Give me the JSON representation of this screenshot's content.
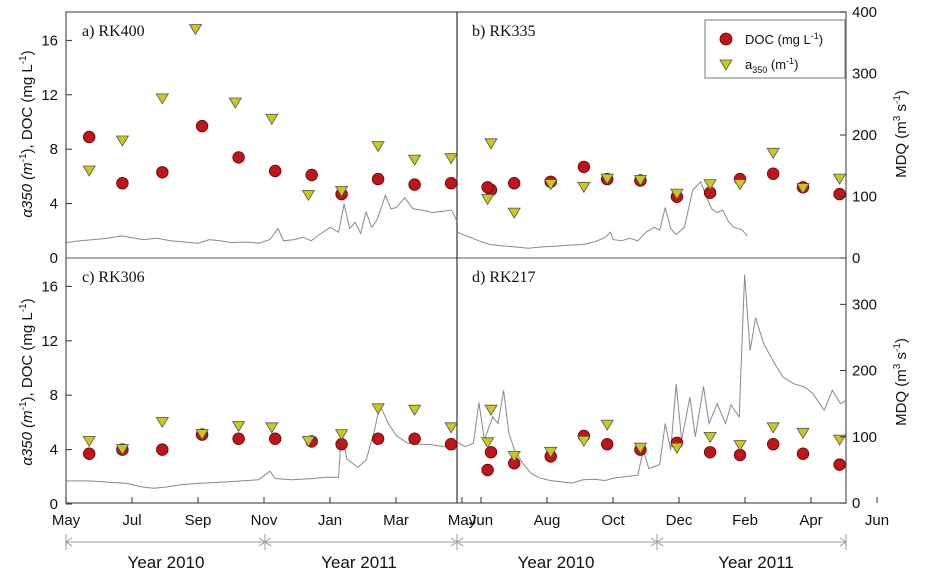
{
  "colors": {
    "doc": "#c0141a",
    "a350": "#c8c81e",
    "mdq_line": "#8a8a8a",
    "frame": "#555555"
  },
  "left_axis_title": {
    "main": "α350 (m",
    "sup1": "-1",
    "mid": "), DOC (mg L",
    "sup2": "-1",
    "end": ")"
  },
  "right_axis_title": {
    "main": "MDQ (m",
    "sup1": "3",
    "mid": " s",
    "sup2": "-1",
    "end": ")"
  },
  "legend": {
    "doc": {
      "main": "DOC (mg L",
      "sup": "-1",
      "end": ")"
    },
    "a350": {
      "main": "a",
      "sub": "350",
      "mid": " (m",
      "sup": "-1",
      "end": ")"
    },
    "position": "top-right of panel b"
  },
  "years": {
    "left": [
      "Year 2010",
      "Year 2011"
    ],
    "right": [
      "Year 2010",
      "Year 2011"
    ]
  },
  "chart_data": [
    {
      "type": "scatter",
      "panel": "a",
      "label": "a) RK400",
      "x_ticks": [
        "May",
        "Jul",
        "Sep",
        "Nov",
        "Jan",
        "Mar",
        "May"
      ],
      "ylim": [
        0,
        18
      ],
      "yticks": [
        0,
        4,
        8,
        12,
        16
      ],
      "y2lim": [
        0,
        400
      ],
      "y2ticks": [
        0,
        100,
        200,
        300,
        400
      ],
      "series": [
        {
          "name": "DOC (mg L-1)",
          "marker": "circle",
          "x": [
            1.7,
            2.7,
            3.9,
            5.1,
            6.2,
            7.3,
            8.4,
            9.3,
            10.4,
            11.5,
            12.6,
            13.8
          ],
          "y": [
            8.9,
            5.5,
            6.3,
            9.7,
            7.4,
            6.4,
            6.1,
            4.7,
            5.8,
            5.4,
            5.5,
            5.0
          ]
        },
        {
          "name": "a350 (m-1)",
          "marker": "triangle",
          "x": [
            1.7,
            2.7,
            3.9,
            4.9,
            6.1,
            7.2,
            8.3,
            9.3,
            10.4,
            11.5,
            12.6,
            13.8
          ],
          "y": [
            6.4,
            8.6,
            11.7,
            16.8,
            11.4,
            10.2,
            4.6,
            4.9,
            8.2,
            7.2,
            7.3,
            8.4
          ]
        }
      ]
    },
    {
      "type": "scatter",
      "panel": "b",
      "label": "b) RK335",
      "x_ticks": [
        "Jun",
        "Aug",
        "Oct",
        "Dec",
        "Feb",
        "Apr",
        "Jun"
      ],
      "ylim": [
        0,
        18
      ],
      "yticks": [
        0,
        4,
        8,
        12,
        16
      ],
      "y2lim": [
        0,
        400
      ],
      "y2ticks": [
        0,
        100,
        200,
        300,
        400
      ],
      "series": [
        {
          "name": "DOC (mg L-1)",
          "marker": "circle",
          "x": [
            6.2,
            7.0,
            8.1,
            9.1,
            9.8,
            10.8,
            11.9,
            12.9,
            13.8,
            14.8,
            15.7,
            16.8
          ],
          "y": [
            5.2,
            5.5,
            5.6,
            6.7,
            5.8,
            5.7,
            4.5,
            4.8,
            5.8,
            6.2,
            5.2,
            4.7
          ]
        },
        {
          "name": "a350 (m-1)",
          "marker": "triangle",
          "x": [
            6.2,
            7.0,
            8.1,
            9.1,
            9.8,
            10.8,
            11.9,
            12.9,
            13.8,
            14.8,
            15.7,
            16.8
          ],
          "y": [
            4.3,
            3.3,
            5.4,
            5.2,
            5.8,
            5.7,
            4.7,
            5.4,
            5.4,
            7.7,
            5.1,
            5.8
          ]
        }
      ]
    },
    {
      "type": "scatter",
      "panel": "c",
      "label": "c) RK306",
      "x_ticks": [
        "May",
        "Jul",
        "Sep",
        "Nov",
        "Jan",
        "Mar",
        "May"
      ],
      "ylim": [
        0,
        18
      ],
      "yticks": [
        0,
        4,
        8,
        12,
        16
      ],
      "series": [
        {
          "name": "DOC (mg L-1)",
          "marker": "circle",
          "x": [
            1.7,
            2.7,
            3.9,
            5.1,
            6.2,
            7.3,
            8.4,
            9.3,
            10.4,
            11.5,
            12.6,
            13.8
          ],
          "y": [
            3.7,
            4.0,
            4.0,
            5.1,
            4.8,
            4.8,
            4.6,
            4.4,
            4.8,
            4.8,
            4.4,
            3.8
          ]
        },
        {
          "name": "a350 (m-1)",
          "marker": "triangle",
          "x": [
            1.7,
            2.7,
            3.9,
            5.1,
            6.2,
            7.2,
            8.3,
            9.3,
            10.4,
            11.5,
            12.6,
            13.8
          ],
          "y": [
            4.6,
            4.0,
            6.0,
            5.1,
            5.7,
            5.6,
            4.6,
            5.1,
            7.0,
            6.9,
            5.6,
            6.9
          ]
        }
      ]
    },
    {
      "type": "scatter",
      "panel": "d",
      "label": "d) RK217",
      "x_ticks": [
        "Jun",
        "Aug",
        "Oct",
        "Dec",
        "Feb",
        "Apr",
        "Jun"
      ],
      "ylim": [
        0,
        18
      ],
      "yticks": [
        0,
        4,
        8,
        12,
        16
      ],
      "y2lim": [
        0,
        370
      ],
      "y2ticks": [
        0,
        100,
        200,
        300
      ],
      "series": [
        {
          "name": "DOC (mg L-1)",
          "marker": "circle",
          "x": [
            6.2,
            7.0,
            8.1,
            9.1,
            9.8,
            10.8,
            11.9,
            12.9,
            13.8,
            14.8,
            15.7,
            16.8
          ],
          "y": [
            2.5,
            3.0,
            3.5,
            5.0,
            4.4,
            4.0,
            4.5,
            3.8,
            3.6,
            4.4,
            3.7,
            2.9
          ]
        },
        {
          "name": "a350 (m-1)",
          "marker": "triangle",
          "x": [
            6.2,
            7.0,
            8.1,
            9.1,
            9.8,
            10.8,
            11.9,
            12.9,
            13.8,
            14.8,
            15.7,
            16.8
          ],
          "y": [
            4.5,
            3.5,
            3.8,
            4.6,
            5.8,
            4.1,
            4.1,
            4.9,
            4.3,
            5.6,
            5.2,
            4.7
          ]
        }
      ]
    }
  ],
  "mdq_lines": {
    "a": [
      [
        0,
        25
      ],
      [
        0.5,
        28
      ],
      [
        1.0,
        30
      ],
      [
        1.5,
        32
      ],
      [
        2.0,
        36
      ],
      [
        2.4,
        33
      ],
      [
        2.8,
        30
      ],
      [
        3.3,
        32
      ],
      [
        3.8,
        28
      ],
      [
        4.3,
        26
      ],
      [
        4.8,
        24
      ],
      [
        5.2,
        30
      ],
      [
        5.6,
        28
      ],
      [
        6.0,
        25
      ],
      [
        6.5,
        26
      ],
      [
        7.0,
        24
      ],
      [
        7.4,
        30
      ],
      [
        7.7,
        48
      ],
      [
        7.9,
        28
      ],
      [
        8.3,
        30
      ],
      [
        8.6,
        34
      ],
      [
        8.9,
        28
      ],
      [
        9.2,
        38
      ],
      [
        9.6,
        50
      ],
      [
        9.9,
        42
      ],
      [
        10.1,
        88
      ],
      [
        10.3,
        48
      ],
      [
        10.5,
        58
      ],
      [
        10.7,
        40
      ],
      [
        10.9,
        75
      ],
      [
        11.1,
        50
      ],
      [
        11.3,
        62
      ],
      [
        11.6,
        102
      ],
      [
        11.8,
        80
      ],
      [
        12.0,
        82
      ],
      [
        12.3,
        98
      ],
      [
        12.6,
        80
      ],
      [
        12.9,
        78
      ],
      [
        13.3,
        74
      ],
      [
        13.7,
        76
      ],
      [
        14.0,
        78
      ],
      [
        14.2,
        60
      ]
    ],
    "b": [
      [
        0,
        42
      ],
      [
        0.4,
        35
      ],
      [
        0.8,
        28
      ],
      [
        1.2,
        22
      ],
      [
        1.6,
        20
      ],
      [
        2.1,
        18
      ],
      [
        2.6,
        16
      ],
      [
        3.1,
        18
      ],
      [
        3.6,
        19
      ],
      [
        4.1,
        21
      ],
      [
        4.6,
        22
      ],
      [
        5.0,
        26
      ],
      [
        5.4,
        33
      ],
      [
        5.6,
        42
      ],
      [
        5.7,
        30
      ],
      [
        6.0,
        28
      ],
      [
        6.3,
        32
      ],
      [
        6.6,
        28
      ],
      [
        6.9,
        42
      ],
      [
        7.2,
        50
      ],
      [
        7.4,
        45
      ],
      [
        7.6,
        82
      ],
      [
        7.8,
        48
      ],
      [
        8.0,
        38
      ],
      [
        8.3,
        50
      ],
      [
        8.6,
        110
      ],
      [
        8.9,
        124
      ],
      [
        9.1,
        100
      ],
      [
        9.3,
        80
      ],
      [
        9.5,
        74
      ],
      [
        9.7,
        78
      ],
      [
        9.9,
        60
      ],
      [
        10.1,
        50
      ],
      [
        10.4,
        46
      ],
      [
        10.6,
        36
      ]
    ],
    "c": [
      [
        0,
        36
      ],
      [
        0.8,
        36
      ],
      [
        1.6,
        34
      ],
      [
        2.2,
        32
      ],
      [
        2.8,
        26
      ],
      [
        3.2,
        24
      ],
      [
        3.6,
        26
      ],
      [
        4.2,
        30
      ],
      [
        4.8,
        32
      ],
      [
        5.6,
        34
      ],
      [
        6.4,
        36
      ],
      [
        7.0,
        38
      ],
      [
        7.4,
        52
      ],
      [
        7.6,
        40
      ],
      [
        8.2,
        38
      ],
      [
        9.0,
        40
      ],
      [
        9.4,
        42
      ],
      [
        9.9,
        42
      ],
      [
        10.0,
        116
      ],
      [
        10.2,
        72
      ],
      [
        10.6,
        58
      ],
      [
        10.9,
        70
      ],
      [
        11.2,
        118
      ],
      [
        11.4,
        160
      ],
      [
        11.7,
        130
      ],
      [
        12.0,
        110
      ],
      [
        12.4,
        98
      ],
      [
        12.8,
        96
      ],
      [
        13.3,
        95
      ],
      [
        13.7,
        92
      ],
      [
        14.0,
        90
      ],
      [
        14.2,
        86
      ]
    ],
    "d": [
      [
        0,
        92
      ],
      [
        0.3,
        85
      ],
      [
        0.6,
        90
      ],
      [
        0.8,
        152
      ],
      [
        1.0,
        95
      ],
      [
        1.3,
        130
      ],
      [
        1.5,
        120
      ],
      [
        1.7,
        170
      ],
      [
        1.9,
        105
      ],
      [
        2.1,
        80
      ],
      [
        2.4,
        60
      ],
      [
        2.7,
        45
      ],
      [
        3.0,
        38
      ],
      [
        3.4,
        34
      ],
      [
        3.8,
        32
      ],
      [
        4.2,
        30
      ],
      [
        4.6,
        35
      ],
      [
        5.0,
        36
      ],
      [
        5.4,
        34
      ],
      [
        5.8,
        38
      ],
      [
        6.2,
        40
      ],
      [
        6.6,
        42
      ],
      [
        6.8,
        80
      ],
      [
        7.0,
        52
      ],
      [
        7.4,
        58
      ],
      [
        7.6,
        120
      ],
      [
        7.8,
        80
      ],
      [
        8.0,
        180
      ],
      [
        8.2,
        95
      ],
      [
        8.5,
        160
      ],
      [
        8.7,
        100
      ],
      [
        9.0,
        176
      ],
      [
        9.2,
        120
      ],
      [
        9.5,
        150
      ],
      [
        9.8,
        120
      ],
      [
        10.0,
        148
      ],
      [
        10.3,
        130
      ],
      [
        10.5,
        345
      ],
      [
        10.7,
        230
      ],
      [
        10.9,
        280
      ],
      [
        11.2,
        240
      ],
      [
        11.6,
        210
      ],
      [
        11.9,
        190
      ],
      [
        12.3,
        180
      ],
      [
        12.7,
        175
      ],
      [
        13.0,
        165
      ],
      [
        13.4,
        140
      ],
      [
        13.7,
        170
      ],
      [
        14.0,
        150
      ],
      [
        14.2,
        155
      ]
    ]
  }
}
